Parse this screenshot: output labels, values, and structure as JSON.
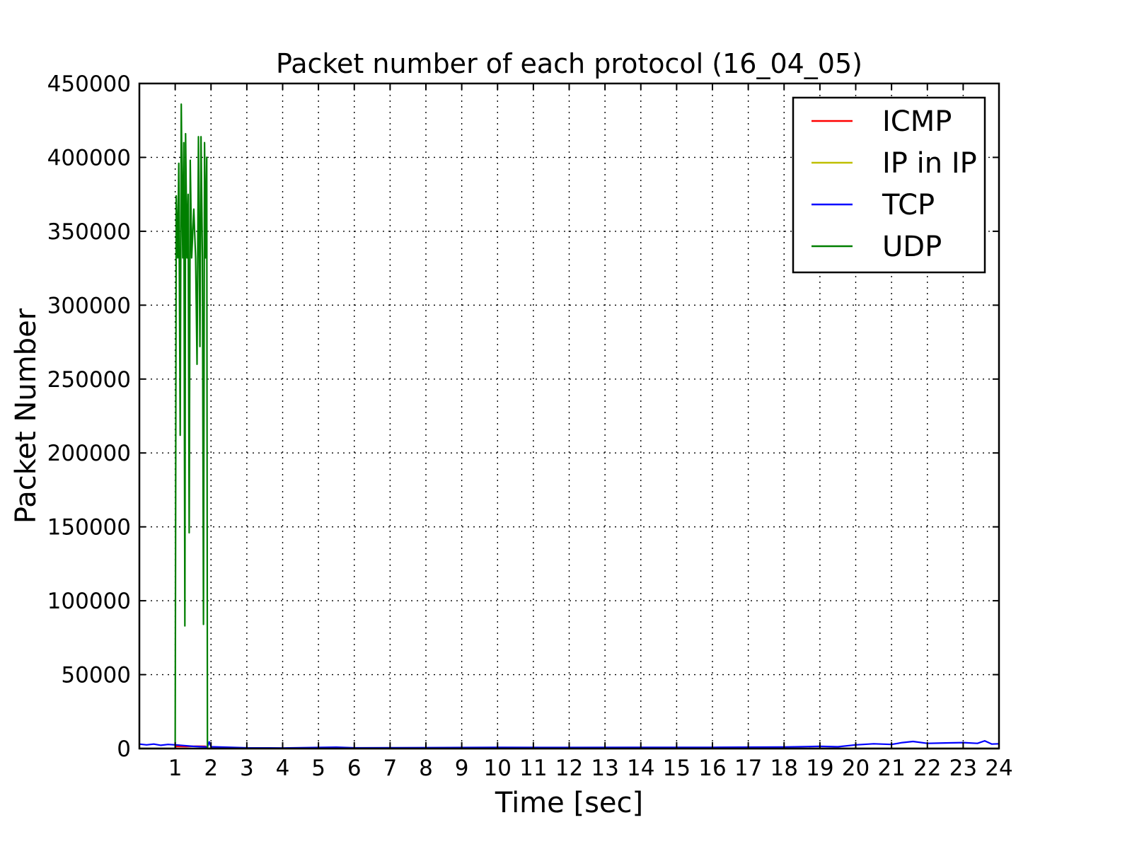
{
  "chart_data": {
    "type": "line",
    "title": "Packet number of each protocol (16_04_05)",
    "xlabel": "Time [sec]",
    "ylabel": "Packet Number",
    "xlim": [
      0,
      24
    ],
    "ylim": [
      0,
      450000
    ],
    "xticks": [
      1,
      2,
      3,
      4,
      5,
      6,
      7,
      8,
      9,
      10,
      11,
      12,
      13,
      14,
      15,
      16,
      17,
      18,
      19,
      20,
      21,
      22,
      23,
      24
    ],
    "yticks": [
      0,
      50000,
      100000,
      150000,
      200000,
      250000,
      300000,
      350000,
      400000,
      450000
    ],
    "grid": true,
    "legend_position": "top-right",
    "series": [
      {
        "name": "ICMP",
        "color": "#ff0000",
        "points": [
          [
            0,
            0
          ],
          [
            1.0,
            0
          ],
          [
            1.02,
            1500
          ],
          [
            1.3,
            1400
          ],
          [
            1.6,
            1600
          ],
          [
            1.85,
            1500
          ],
          [
            1.9,
            0
          ],
          [
            24,
            0
          ]
        ]
      },
      {
        "name": "IP in IP",
        "color": "#bfbf00",
        "points": [
          [
            0,
            0
          ],
          [
            24,
            0
          ]
        ]
      },
      {
        "name": "TCP",
        "color": "#0000ff",
        "points": [
          [
            0,
            3000
          ],
          [
            0.2,
            2500
          ],
          [
            0.4,
            3000
          ],
          [
            0.6,
            2200
          ],
          [
            0.8,
            2800
          ],
          [
            1.0,
            2500
          ],
          [
            1.5,
            1500
          ],
          [
            1.9,
            1000
          ],
          [
            1.95,
            4500
          ],
          [
            2.0,
            1200
          ],
          [
            3,
            500
          ],
          [
            4,
            400
          ],
          [
            5,
            700
          ],
          [
            5.5,
            900
          ],
          [
            6,
            500
          ],
          [
            8,
            600
          ],
          [
            10,
            800
          ],
          [
            12,
            700
          ],
          [
            14,
            800
          ],
          [
            16,
            800
          ],
          [
            18,
            1000
          ],
          [
            19,
            1500
          ],
          [
            19.5,
            1200
          ],
          [
            20,
            2500
          ],
          [
            20.5,
            3200
          ],
          [
            21,
            2800
          ],
          [
            21.3,
            4000
          ],
          [
            21.6,
            4800
          ],
          [
            22,
            3500
          ],
          [
            22.5,
            3800
          ],
          [
            23,
            4000
          ],
          [
            23.4,
            3500
          ],
          [
            23.6,
            5200
          ],
          [
            23.8,
            3000
          ],
          [
            24,
            3200
          ]
        ]
      },
      {
        "name": "UDP",
        "color": "#007f00",
        "points": [
          [
            0,
            0
          ],
          [
            1.0,
            0
          ],
          [
            1.03,
            374000
          ],
          [
            1.07,
            332000
          ],
          [
            1.1,
            396000
          ],
          [
            1.14,
            212000
          ],
          [
            1.17,
            436000
          ],
          [
            1.21,
            332000
          ],
          [
            1.24,
            410000
          ],
          [
            1.27,
            83000
          ],
          [
            1.29,
            416000
          ],
          [
            1.33,
            332000
          ],
          [
            1.36,
            375000
          ],
          [
            1.39,
            146000
          ],
          [
            1.42,
            398000
          ],
          [
            1.46,
            332000
          ],
          [
            1.52,
            365000
          ],
          [
            1.57,
            332000
          ],
          [
            1.61,
            260000
          ],
          [
            1.65,
            414000
          ],
          [
            1.69,
            272000
          ],
          [
            1.72,
            414000
          ],
          [
            1.76,
            332000
          ],
          [
            1.79,
            84000
          ],
          [
            1.82,
            410000
          ],
          [
            1.85,
            332000
          ],
          [
            1.88,
            400000
          ],
          [
            1.9,
            0
          ],
          [
            24,
            0
          ]
        ]
      }
    ]
  }
}
